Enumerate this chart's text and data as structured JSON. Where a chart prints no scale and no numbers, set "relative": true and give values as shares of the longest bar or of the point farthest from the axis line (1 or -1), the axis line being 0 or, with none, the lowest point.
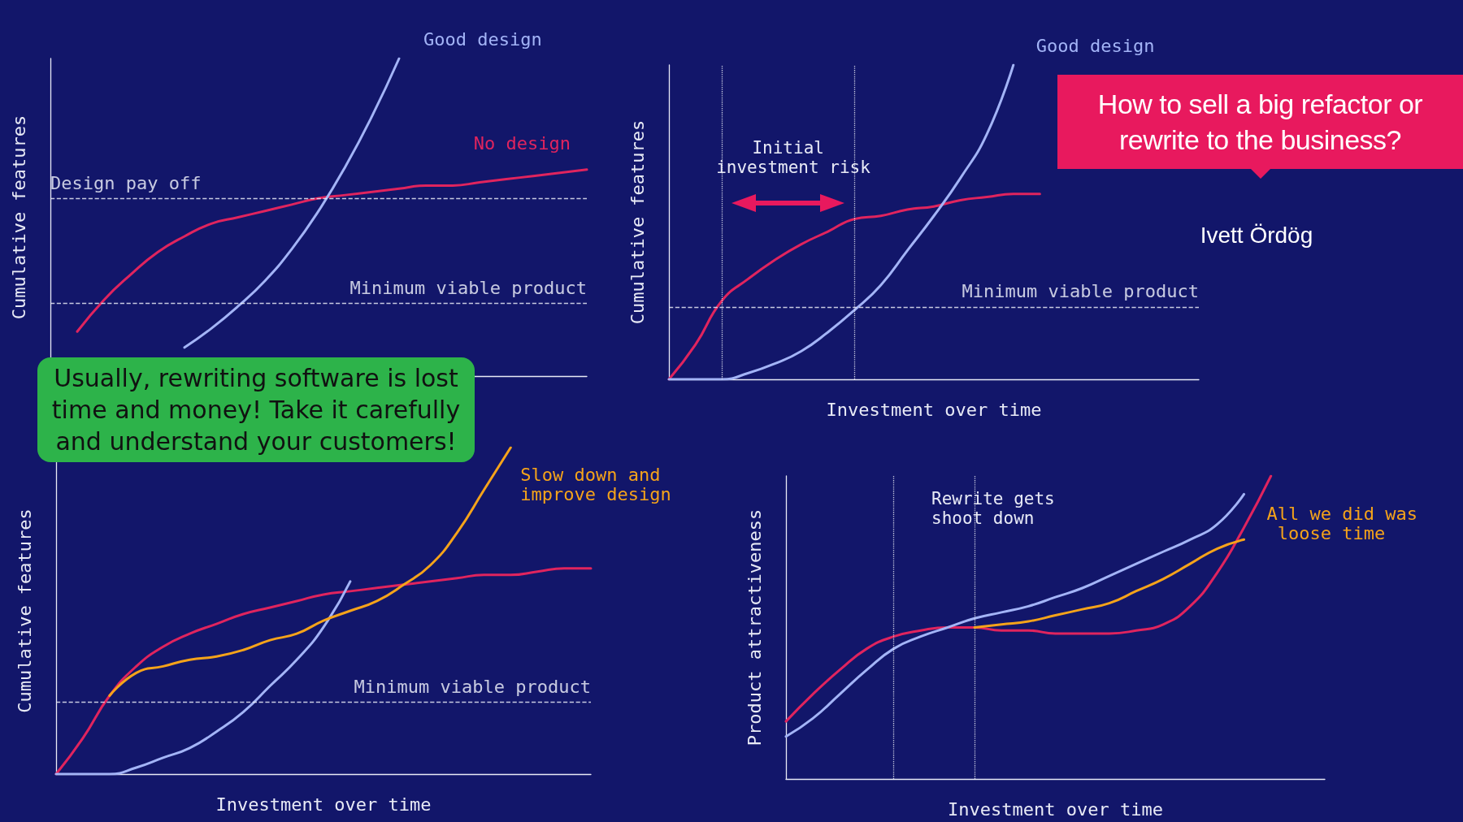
{
  "chart_data": [
    {
      "type": "line",
      "relative": true,
      "marker": "none",
      "ylabel": "Cumulative features",
      "categories": [
        null,
        null,
        null,
        null,
        null,
        null,
        null,
        null,
        null,
        null,
        null,
        null,
        null,
        null,
        null,
        null,
        null,
        null,
        null,
        null,
        null
      ],
      "series": [
        {
          "name": "No design",
          "color": "#e0245e",
          "values": [
            null,
            0.14,
            0.24,
            0.32,
            0.39,
            0.44,
            0.48,
            0.5,
            0.52,
            0.54,
            0.56,
            0.57,
            0.58,
            0.59,
            0.6,
            0.6,
            0.61,
            0.62,
            0.63,
            0.64,
            0.65
          ]
        },
        {
          "name": "Good design",
          "color": "#a3b4f7",
          "values": [
            null,
            null,
            null,
            null,
            null,
            0.09,
            0.15,
            0.22,
            0.3,
            0.4,
            0.52,
            0.66,
            0.82,
            1,
            null,
            null,
            null,
            null,
            null,
            null,
            null
          ]
        }
      ],
      "ref_lines": [
        {
          "axis": "y",
          "value": 0.56,
          "label": "Design pay off",
          "line_style": "dashed"
        },
        {
          "axis": "y",
          "value": 0.23,
          "label": "Minimum viable product",
          "line_style": "dashed"
        }
      ]
    },
    {
      "type": "line",
      "relative": true,
      "marker": "none",
      "ylabel": "Cumulative features",
      "xlabel": "Investment over time",
      "categories": [
        null,
        null,
        null,
        null,
        null,
        null,
        null,
        null,
        null,
        null,
        null,
        null,
        null,
        null,
        null,
        null,
        null,
        null,
        null,
        null,
        null
      ],
      "series": [
        {
          "color": "#e0245e",
          "values": [
            0,
            0.11,
            0.25,
            0.32,
            0.38,
            0.43,
            0.47,
            0.51,
            0.52,
            0.54,
            0.55,
            0.57,
            0.58,
            0.59,
            0.59,
            null,
            null,
            null,
            null,
            null,
            null
          ]
        },
        {
          "name": "Good design",
          "color": "#a3b4f7",
          "values": [
            0,
            0,
            0,
            0.02,
            0.05,
            0.09,
            0.15,
            0.22,
            0.3,
            0.41,
            0.52,
            0.64,
            0.78,
            1,
            null,
            null,
            null,
            null,
            null,
            null,
            null
          ]
        }
      ],
      "ref_lines": [
        {
          "axis": "y",
          "value": 0.23,
          "label": "Minimum viable product",
          "line_style": "dashed"
        }
      ],
      "annotations": [
        "Initial investment risk"
      ]
    },
    {
      "type": "line",
      "relative": true,
      "marker": "none",
      "ylabel": "Cumulative features",
      "xlabel": "Investment over time",
      "categories": [
        null,
        null,
        null,
        null,
        null,
        null,
        null,
        null,
        null,
        null,
        null,
        null,
        null,
        null,
        null,
        null,
        null,
        null,
        null,
        null,
        null
      ],
      "series": [
        {
          "color": "#e0245e",
          "values": [
            0,
            0.11,
            0.24,
            0.33,
            0.39,
            0.43,
            0.46,
            0.49,
            0.51,
            0.53,
            0.55,
            0.56,
            0.57,
            0.58,
            0.59,
            0.6,
            0.61,
            0.61,
            0.62,
            0.63,
            0.63
          ]
        },
        {
          "color": "#a3b4f7",
          "values": [
            0,
            0,
            0,
            0.02,
            0.05,
            0.08,
            0.13,
            0.19,
            0.27,
            0.35,
            0.45,
            0.59,
            null,
            null,
            null,
            null,
            null,
            null,
            null,
            null,
            null
          ]
        },
        {
          "name": "Slow down and improve design",
          "color": "#f5a31a",
          "values": [
            null,
            null,
            0.24,
            0.31,
            0.33,
            0.35,
            0.36,
            0.38,
            0.41,
            0.43,
            0.47,
            0.5,
            0.53,
            0.58,
            0.64,
            0.74,
            0.87,
            1,
            null,
            null,
            null
          ]
        }
      ],
      "ref_lines": [
        {
          "axis": "y",
          "value": 0.22,
          "label": "Minimum viable product",
          "line_style": "dashed"
        }
      ]
    },
    {
      "type": "line",
      "relative": true,
      "marker": "none",
      "ylabel": "Product attractiveness",
      "xlabel": "Investment over time",
      "categories": [
        null,
        null,
        null,
        null,
        null,
        null,
        null,
        null,
        null,
        null,
        null,
        null,
        null,
        null,
        null,
        null,
        null,
        null,
        null,
        null,
        null
      ],
      "series": [
        {
          "color": "#e0245e",
          "values": [
            0.19,
            0.28,
            0.36,
            0.43,
            0.47,
            0.49,
            0.5,
            0.5,
            0.49,
            0.49,
            0.48,
            0.48,
            0.48,
            0.49,
            0.51,
            0.57,
            0.68,
            0.83,
            1,
            null,
            null
          ]
        },
        {
          "color": "#a3b4f7",
          "values": [
            0.14,
            0.2,
            0.28,
            0.36,
            0.43,
            0.47,
            0.5,
            0.53,
            0.55,
            0.57,
            0.6,
            0.63,
            0.67,
            0.71,
            0.75,
            0.79,
            0.84,
            0.94,
            null,
            null,
            null
          ]
        },
        {
          "name": "All we did was loose time",
          "color": "#f5a31a",
          "values": [
            null,
            null,
            null,
            null,
            null,
            null,
            null,
            0.5,
            0.51,
            0.52,
            0.54,
            0.56,
            0.58,
            0.62,
            0.66,
            0.71,
            0.76,
            0.79,
            null,
            null,
            null
          ]
        }
      ],
      "annotations": [
        "Rewrite gets shoot down"
      ]
    },
    {
      "type": "other",
      "title": "How to sell a big refactor or rewrite to the business?",
      "annotations": [
        "Usually, rewriting software is lost time and money! Take it carefully and understand your customers!",
        "Ivett Ördög"
      ]
    }
  ]
}
